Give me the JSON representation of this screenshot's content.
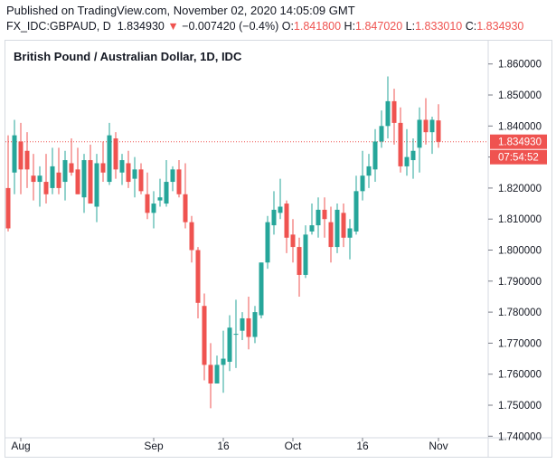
{
  "header": {
    "published": "Published on TradingView.com, November 02, 2020 14:05:09 GMT",
    "symbol": "FX_IDC:GBPAUD, D",
    "last": "1.834930",
    "arrow": "▼",
    "change": "−0.007420 (−0.4%)",
    "o_label": "O:",
    "o_value": "1.841800",
    "h_label": "H:",
    "h_value": "1.847020",
    "l_label": "L:",
    "l_value": "1.833010",
    "c_label": "C:",
    "c_value": "1.834930"
  },
  "colors": {
    "up": "#26a69a",
    "down": "#ef5350",
    "price_line": "#ef5350",
    "axis_text": "#131722",
    "border": "#d6dae0"
  },
  "chart_data": {
    "type": "candlestick",
    "title": "British Pound / Australian Dollar, 1D, IDC",
    "y_ticks": [
      "1.740000",
      "1.750000",
      "1.760000",
      "1.770000",
      "1.780000",
      "1.790000",
      "1.800000",
      "1.810000",
      "1.820000",
      "1.830000",
      "1.840000",
      "1.850000",
      "1.860000"
    ],
    "ylim": [
      1.7395,
      1.8675
    ],
    "x_tick_labels": [
      {
        "label": "Aug",
        "index": 2
      },
      {
        "label": "Sep",
        "index": 23
      },
      {
        "label": "16",
        "index": 34
      },
      {
        "label": "Oct",
        "index": 45
      },
      {
        "label": "16",
        "index": 56
      },
      {
        "label": "Nov",
        "index": 68
      }
    ],
    "last_price_label": "1.834930",
    "countdown_label": "07:54:52",
    "last_price": 1.83493,
    "candles": [
      [
        1.82,
        1.837,
        1.806,
        1.807
      ],
      [
        1.825,
        1.842,
        1.818,
        1.837
      ],
      [
        1.835,
        1.841,
        1.818,
        1.826
      ],
      [
        1.832,
        1.838,
        1.82,
        1.826
      ],
      [
        1.824,
        1.831,
        1.816,
        1.822
      ],
      [
        1.822,
        1.827,
        1.814,
        1.824
      ],
      [
        1.822,
        1.831,
        1.815,
        1.818
      ],
      [
        1.82,
        1.833,
        1.818,
        1.827
      ],
      [
        1.825,
        1.833,
        1.818,
        1.82
      ],
      [
        1.822,
        1.832,
        1.816,
        1.829
      ],
      [
        1.828,
        1.836,
        1.824,
        1.825
      ],
      [
        1.826,
        1.833,
        1.818,
        1.818
      ],
      [
        1.817,
        1.831,
        1.812,
        1.829
      ],
      [
        1.829,
        1.834,
        1.815,
        1.815
      ],
      [
        1.814,
        1.831,
        1.809,
        1.828
      ],
      [
        1.828,
        1.835,
        1.822,
        1.825
      ],
      [
        1.822,
        1.841,
        1.821,
        1.837
      ],
      [
        1.836,
        1.838,
        1.823,
        1.826
      ],
      [
        1.825,
        1.831,
        1.821,
        1.829
      ],
      [
        1.828,
        1.832,
        1.82,
        1.822
      ],
      [
        1.823,
        1.83,
        1.817,
        1.826
      ],
      [
        1.826,
        1.828,
        1.818,
        1.819
      ],
      [
        1.818,
        1.825,
        1.81,
        1.812
      ],
      [
        1.812,
        1.819,
        1.807,
        1.815
      ],
      [
        1.816,
        1.823,
        1.814,
        1.817
      ],
      [
        1.815,
        1.829,
        1.814,
        1.822
      ],
      [
        1.822,
        1.827,
        1.819,
        1.826
      ],
      [
        1.826,
        1.829,
        1.817,
        1.818
      ],
      [
        1.818,
        1.828,
        1.807,
        1.809
      ],
      [
        1.809,
        1.811,
        1.796,
        1.8
      ],
      [
        1.8,
        1.801,
        1.778,
        1.783
      ],
      [
        1.782,
        1.786,
        1.758,
        1.763
      ],
      [
        1.763,
        1.77,
        1.749,
        1.757
      ],
      [
        1.757,
        1.766,
        1.757,
        1.763
      ],
      [
        1.763,
        1.774,
        1.754,
        1.765
      ],
      [
        1.764,
        1.779,
        1.761,
        1.775
      ],
      [
        1.773,
        1.784,
        1.762,
        1.773
      ],
      [
        1.774,
        1.78,
        1.771,
        1.778
      ],
      [
        1.778,
        1.785,
        1.768,
        1.772
      ],
      [
        1.772,
        1.782,
        1.77,
        1.78
      ],
      [
        1.779,
        1.796,
        1.778,
        1.796
      ],
      [
        1.796,
        1.811,
        1.794,
        1.809
      ],
      [
        1.808,
        1.819,
        1.805,
        1.813
      ],
      [
        1.812,
        1.823,
        1.81,
        1.814
      ],
      [
        1.815,
        1.816,
        1.799,
        1.804
      ],
      [
        1.805,
        1.81,
        1.796,
        1.801
      ],
      [
        1.801,
        1.804,
        1.785,
        1.792
      ],
      [
        1.792,
        1.808,
        1.791,
        1.805
      ],
      [
        1.806,
        1.815,
        1.805,
        1.808
      ],
      [
        1.808,
        1.817,
        1.804,
        1.813
      ],
      [
        1.813,
        1.817,
        1.804,
        1.81
      ],
      [
        1.809,
        1.814,
        1.796,
        1.801
      ],
      [
        1.801,
        1.815,
        1.799,
        1.813
      ],
      [
        1.812,
        1.815,
        1.801,
        1.804
      ],
      [
        1.804,
        1.81,
        1.797,
        1.807
      ],
      [
        1.806,
        1.824,
        1.805,
        1.819
      ],
      [
        1.819,
        1.832,
        1.816,
        1.824
      ],
      [
        1.824,
        1.831,
        1.82,
        1.827
      ],
      [
        1.826,
        1.839,
        1.822,
        1.835
      ],
      [
        1.835,
        1.845,
        1.833,
        1.84
      ],
      [
        1.84,
        1.856,
        1.836,
        1.848
      ],
      [
        1.848,
        1.852,
        1.834,
        1.841
      ],
      [
        1.841,
        1.846,
        1.825,
        1.827
      ],
      [
        1.827,
        1.839,
        1.824,
        1.83
      ],
      [
        1.829,
        1.836,
        1.823,
        1.832
      ],
      [
        1.833,
        1.846,
        1.825,
        1.842
      ],
      [
        1.842,
        1.849,
        1.834,
        1.838
      ],
      [
        1.838,
        1.843,
        1.831,
        1.842
      ],
      [
        1.8418,
        1.847,
        1.833,
        1.8349
      ]
    ]
  }
}
